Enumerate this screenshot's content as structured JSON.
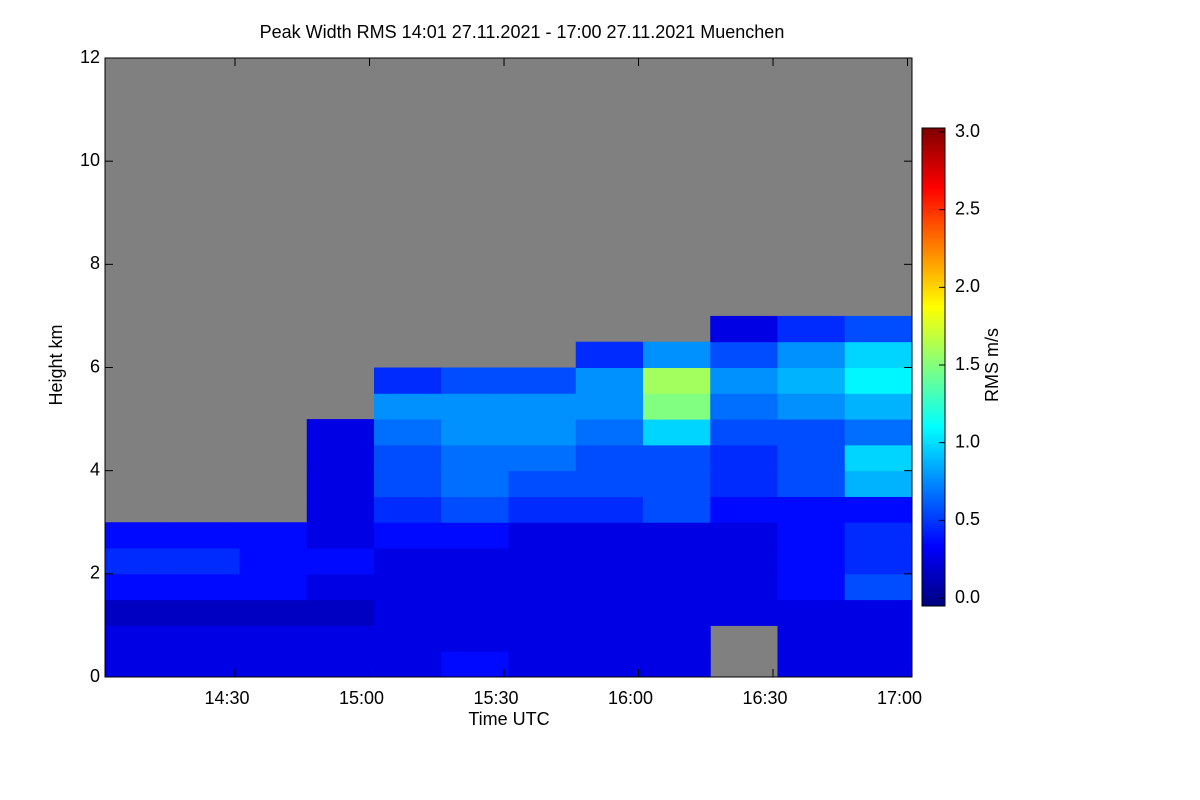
{
  "chart_data": {
    "type": "heatmap",
    "title": "Peak Width RMS   14:01 27.11.2021 - 17:00 27.11.2021 Muenchen",
    "x_label": "Time UTC",
    "y_label": "Height km",
    "colorbar_label": "RMS m/s",
    "xlim": [
      841,
      1021
    ],
    "xticks": [
      {
        "value": 870,
        "label": "14:30"
      },
      {
        "value": 900,
        "label": "15:00"
      },
      {
        "value": 930,
        "label": "15:30"
      },
      {
        "value": 960,
        "label": "16:00"
      },
      {
        "value": 990,
        "label": "16:30"
      },
      {
        "value": 1020,
        "label": "17:00"
      }
    ],
    "ylim": [
      0,
      12
    ],
    "yticks": [
      0,
      2,
      4,
      6,
      8,
      10,
      12
    ],
    "clim": [
      0,
      3
    ],
    "cticks": [
      {
        "value": 0,
        "label": "0.0"
      },
      {
        "value": 0.5,
        "label": "0.5"
      },
      {
        "value": 1,
        "label": "1.0"
      },
      {
        "value": 1.5,
        "label": "1.5"
      },
      {
        "value": 2,
        "label": "2.0"
      },
      {
        "value": 2.5,
        "label": "2.5"
      },
      {
        "value": 3,
        "label": "3.0"
      }
    ],
    "colorscale": [
      "#00007f",
      "#0000ff",
      "#0080ff",
      "#00ffff",
      "#80ff80",
      "#ffff00",
      "#ff8000",
      "#ff0000",
      "#7f0000"
    ],
    "background": "#808080",
    "xbins": [
      841,
      856,
      871,
      886,
      901,
      916,
      931,
      946,
      961,
      976,
      991,
      1006,
      1021
    ],
    "ybins": [
      0,
      0.5,
      1,
      1.5,
      2,
      2.5,
      3,
      3.5,
      4,
      4.5,
      5,
      5.5,
      6,
      6.5,
      7
    ],
    "z": [
      [
        0.3,
        0.3,
        0.3,
        0.3,
        0.3,
        0.4,
        0.3,
        0.3,
        0.3,
        null,
        0.3,
        0.3
      ],
      [
        0.3,
        0.3,
        0.3,
        0.3,
        0.3,
        0.3,
        0.3,
        0.3,
        0.3,
        null,
        0.3,
        0.3
      ],
      [
        0.2,
        0.2,
        0.2,
        0.2,
        0.3,
        0.3,
        0.3,
        0.3,
        0.3,
        0.3,
        0.3,
        0.3
      ],
      [
        0.4,
        0.4,
        0.4,
        0.3,
        0.3,
        0.3,
        0.3,
        0.3,
        0.3,
        0.3,
        0.4,
        0.6
      ],
      [
        0.5,
        0.5,
        0.4,
        0.4,
        0.3,
        0.3,
        0.3,
        0.3,
        0.3,
        0.3,
        0.4,
        0.5
      ],
      [
        0.4,
        0.4,
        0.4,
        0.3,
        0.4,
        0.4,
        0.3,
        0.3,
        0.3,
        0.3,
        0.4,
        0.5
      ],
      [
        null,
        null,
        null,
        0.3,
        0.5,
        0.6,
        0.5,
        0.5,
        0.6,
        0.4,
        0.4,
        0.4
      ],
      [
        null,
        null,
        null,
        0.3,
        0.6,
        0.7,
        0.6,
        0.6,
        0.6,
        0.5,
        0.6,
        0.9
      ],
      [
        null,
        null,
        null,
        0.3,
        0.6,
        0.7,
        0.7,
        0.6,
        0.6,
        0.5,
        0.6,
        1.0
      ],
      [
        null,
        null,
        null,
        0.3,
        0.7,
        0.8,
        0.8,
        0.7,
        1.0,
        0.6,
        0.6,
        0.7
      ],
      [
        null,
        null,
        null,
        null,
        0.8,
        0.8,
        0.8,
        0.8,
        1.5,
        0.7,
        0.8,
        0.9
      ],
      [
        null,
        null,
        null,
        null,
        0.5,
        0.6,
        0.6,
        0.8,
        1.6,
        0.8,
        0.9,
        1.1
      ],
      [
        null,
        null,
        null,
        null,
        null,
        null,
        null,
        0.5,
        0.8,
        0.6,
        0.8,
        1.0
      ],
      [
        null,
        null,
        null,
        null,
        null,
        null,
        null,
        null,
        null,
        0.3,
        0.5,
        0.6
      ]
    ]
  }
}
